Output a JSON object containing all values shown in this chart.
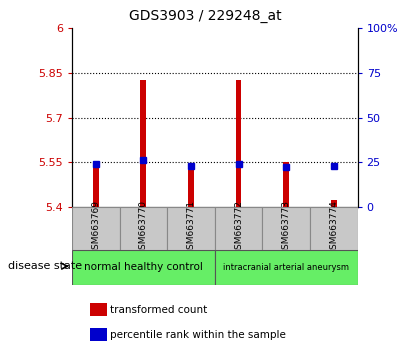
{
  "title": "GDS3903 / 229248_at",
  "samples": [
    "GSM663769",
    "GSM663770",
    "GSM663771",
    "GSM663772",
    "GSM663773",
    "GSM663774"
  ],
  "ylim_left": [
    5.4,
    6.0
  ],
  "ylim_right": [
    0,
    100
  ],
  "yticks_left": [
    5.4,
    5.55,
    5.7,
    5.85,
    6.0
  ],
  "yticks_right": [
    0,
    25,
    50,
    75,
    100
  ],
  "ytick_labels_left": [
    "5.4",
    "5.55",
    "5.7",
    "5.85",
    "6"
  ],
  "ytick_labels_right": [
    "0",
    "25",
    "50",
    "75",
    "100%"
  ],
  "bar_base": 5.4,
  "red_tops": [
    5.545,
    5.825,
    5.525,
    5.825,
    5.553,
    5.425
  ],
  "blue_values": [
    5.545,
    5.558,
    5.537,
    5.545,
    5.533,
    5.537
  ],
  "red_color": "#CC0000",
  "blue_color": "#0000CC",
  "bar_width": 0.12,
  "group1_label": "normal healthy control",
  "group2_label": "intracranial arterial aneurysm",
  "group_color": "#66EE66",
  "sample_bg_color": "#C8C8C8",
  "legend_red": "transformed count",
  "legend_blue": "percentile rank within the sample",
  "left_axis_color": "#CC0000",
  "right_axis_color": "#0000CC",
  "disease_state_label": "disease state"
}
